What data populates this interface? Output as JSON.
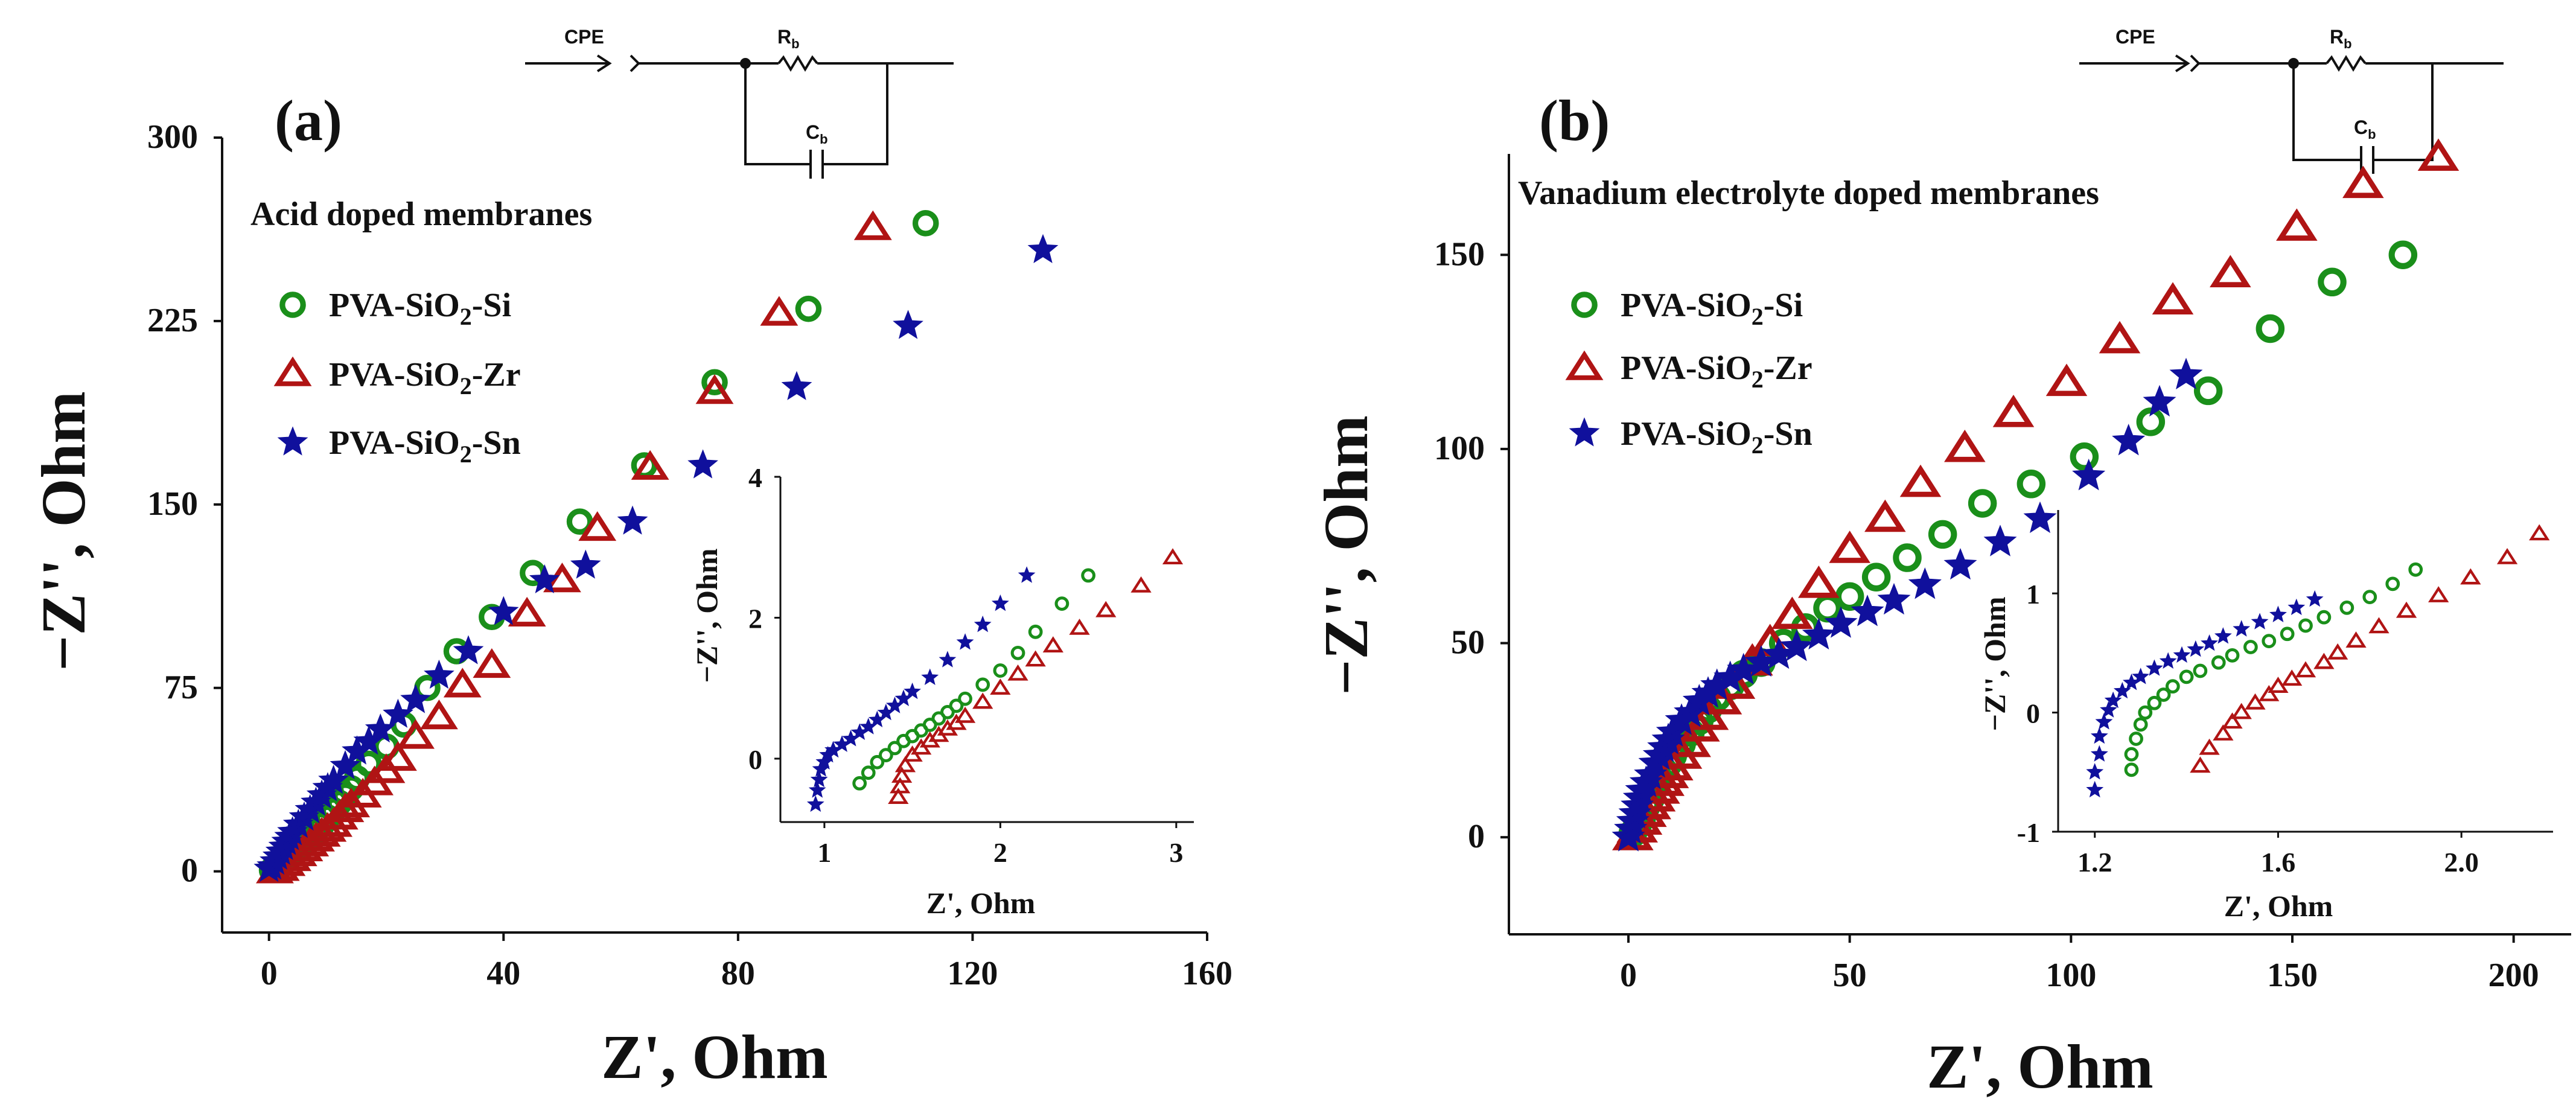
{
  "colors": {
    "si": "#1a8f1a",
    "zr": "#b01414",
    "sn": "#10109c",
    "axis": "#111111"
  },
  "chart_data": [
    {
      "type": "scatter",
      "panel_label": "(a)",
      "title": "Acid doped membranes",
      "xlabel": "Z', Ohm",
      "ylabel": "−Z'', Ohm",
      "xlim": [
        -8,
        160
      ],
      "ylim": [
        -25,
        300
      ],
      "xticks": [
        "0",
        "40",
        "80",
        "120",
        "160"
      ],
      "yticks": [
        "0",
        "75",
        "150",
        "225",
        "300"
      ],
      "legend_position": "top-left",
      "circuit": {
        "cpe_label": "CPE",
        "r_main": "R",
        "r_sub": "b",
        "c_main": "C",
        "c_sub": "b"
      },
      "series": [
        {
          "name": "PVA-SiO2-Si",
          "legend_main": "PVA-SiO",
          "legend_sub": "2",
          "legend_tail": "-Si",
          "marker": "circle",
          "color_key": "si",
          "x": [
            0.5,
            1,
            2,
            3,
            4,
            5,
            6,
            7,
            8,
            9,
            10,
            11,
            12,
            13,
            14,
            15,
            17,
            20,
            23,
            27,
            32,
            38,
            45,
            53,
            64,
            76,
            92,
            112
          ],
          "y": [
            0.5,
            1.5,
            3,
            5,
            7,
            9,
            11.5,
            14,
            16.5,
            19,
            22,
            25,
            28,
            31,
            34,
            38,
            44,
            51,
            60,
            75,
            90,
            104,
            122,
            143,
            166,
            200,
            230,
            265
          ]
        },
        {
          "name": "PVA-SiO2-Zr",
          "legend_main": "PVA-SiO",
          "legend_sub": "2",
          "legend_tail": "-Zr",
          "marker": "triangle",
          "color_key": "zr",
          "x": [
            1,
            2,
            3,
            4,
            5,
            6,
            7,
            8,
            9,
            10,
            11,
            12,
            13,
            14,
            16,
            18,
            20,
            22,
            25,
            29,
            33,
            38,
            44,
            50,
            56,
            65,
            76,
            87,
            103
          ],
          "y": [
            0,
            1,
            3,
            5,
            7,
            9,
            11,
            13,
            15,
            17,
            19,
            22,
            25,
            27,
            31,
            36,
            41,
            46,
            55,
            63,
            76,
            84,
            105,
            119,
            140,
            165,
            196,
            228,
            263
          ]
        },
        {
          "name": "PVA-SiO2-Sn",
          "legend_main": "PVA-SiO",
          "legend_sub": "2",
          "legend_tail": "-Sn",
          "marker": "star",
          "color_key": "sn",
          "x": [
            0,
            0.5,
            1,
            1.5,
            2,
            2.5,
            3,
            3.5,
            4,
            5,
            6,
            7,
            8,
            9,
            10,
            11,
            13,
            15,
            17,
            19,
            22,
            25,
            29,
            34,
            40,
            47,
            54,
            62,
            74,
            90,
            109,
            132
          ],
          "y": [
            1,
            2,
            4,
            6,
            8,
            10,
            12,
            14,
            16,
            19,
            22,
            25,
            28,
            31,
            34,
            37,
            43,
            49,
            53,
            58,
            64,
            70,
            80,
            90,
            106,
            119,
            125,
            143,
            166,
            198,
            223,
            254
          ]
        }
      ],
      "inset": {
        "xlabel": "Z', Ohm",
        "ylabel": "−Z'', Ohm",
        "xlim": [
          0.75,
          3.1
        ],
        "ylim": [
          -0.9,
          4
        ],
        "xticks": [
          "1",
          "2",
          "3"
        ],
        "yticks": [
          "0",
          "2",
          "4"
        ],
        "series": [
          {
            "name": "PVA-SiO2-Si",
            "marker": "circle",
            "color_key": "si",
            "x": [
              1.2,
              1.25,
              1.3,
              1.35,
              1.4,
              1.45,
              1.5,
              1.55,
              1.6,
              1.65,
              1.7,
              1.75,
              1.8,
              1.9,
              2.0,
              2.1,
              2.2,
              2.35,
              2.5
            ],
            "y": [
              -0.35,
              -0.2,
              -0.05,
              0.05,
              0.15,
              0.25,
              0.32,
              0.4,
              0.48,
              0.57,
              0.66,
              0.75,
              0.85,
              1.05,
              1.25,
              1.5,
              1.8,
              2.2,
              2.6
            ]
          },
          {
            "name": "PVA-SiO2-Zr",
            "marker": "triangle",
            "color_key": "zr",
            "x": [
              1.42,
              1.43,
              1.44,
              1.46,
              1.5,
              1.55,
              1.6,
              1.65,
              1.7,
              1.75,
              1.8,
              1.9,
              2.0,
              2.1,
              2.2,
              2.3,
              2.45,
              2.6,
              2.8,
              2.98
            ],
            "y": [
              -0.55,
              -0.4,
              -0.25,
              -0.1,
              0.05,
              0.15,
              0.25,
              0.33,
              0.42,
              0.5,
              0.6,
              0.8,
              1.0,
              1.2,
              1.4,
              1.6,
              1.85,
              2.1,
              2.45,
              2.85
            ]
          },
          {
            "name": "PVA-SiO2-Sn",
            "marker": "star",
            "color_key": "sn",
            "x": [
              0.95,
              0.96,
              0.97,
              0.98,
              1.0,
              1.02,
              1.05,
              1.1,
              1.15,
              1.2,
              1.25,
              1.3,
              1.35,
              1.4,
              1.45,
              1.5,
              1.6,
              1.7,
              1.8,
              1.9,
              2.0,
              2.15
            ],
            "y": [
              -0.65,
              -0.45,
              -0.3,
              -0.15,
              -0.05,
              0.05,
              0.12,
              0.2,
              0.28,
              0.37,
              0.45,
              0.55,
              0.65,
              0.75,
              0.85,
              0.95,
              1.15,
              1.4,
              1.65,
              1.9,
              2.2,
              2.6
            ]
          }
        ]
      }
    },
    {
      "type": "scatter",
      "panel_label": "(b)",
      "title": "Vanadium electrolyte doped membranes",
      "xlabel": "Z', Ohm",
      "ylabel": "−Z'', Ohm",
      "xlim": [
        -27,
        213
      ],
      "ylim": [
        -25,
        176
      ],
      "xticks": [
        "0",
        "50",
        "100",
        "150",
        "200"
      ],
      "yticks": [
        "0",
        "50",
        "100",
        "150"
      ],
      "legend_position": "top-left",
      "circuit": {
        "cpe_label": "CPE",
        "r_main": "R",
        "r_sub": "b",
        "c_main": "C",
        "c_sub": "b"
      },
      "series": [
        {
          "name": "PVA-SiO2-Si",
          "legend_main": "PVA-SiO",
          "legend_sub": "2",
          "legend_tail": "-Si",
          "marker": "circle",
          "color_key": "si",
          "x": [
            1,
            2,
            3,
            4,
            5,
            6,
            7,
            8,
            9,
            10,
            12,
            14,
            16,
            18,
            20,
            23,
            26,
            30,
            35,
            40,
            45,
            50,
            56,
            63,
            71,
            80,
            91,
            103,
            118,
            131,
            145,
            159,
            175
          ],
          "y": [
            1,
            3,
            5,
            8,
            10,
            13,
            15,
            17,
            19,
            21,
            24,
            27,
            30,
            33,
            36,
            39,
            42,
            45,
            50,
            54,
            59,
            62,
            67,
            72,
            78,
            86,
            91,
            98,
            107,
            115,
            131,
            143,
            150
          ]
        },
        {
          "name": "PVA-SiO2-Zr",
          "legend_main": "PVA-SiO",
          "legend_sub": "2",
          "legend_tail": "-Zr",
          "marker": "triangle",
          "color_key": "zr",
          "x": [
            1,
            2,
            3,
            4,
            5,
            6,
            7,
            8,
            9,
            10,
            12,
            14,
            16,
            18,
            21,
            24,
            28,
            32,
            37,
            43,
            50,
            58,
            66,
            76,
            87,
            99,
            111,
            123,
            136,
            151,
            166,
            183
          ],
          "y": [
            0,
            2,
            4,
            6,
            8,
            10,
            12,
            14,
            16,
            18,
            21,
            24,
            28,
            31,
            35,
            39,
            45,
            50,
            57,
            65,
            74,
            82,
            91,
            100,
            109,
            117,
            128,
            138,
            145,
            157,
            168,
            175
          ]
        },
        {
          "name": "PVA-SiO2-Sn",
          "legend_main": "PVA-SiO",
          "legend_sub": "2",
          "legend_tail": "-Sn",
          "marker": "star",
          "color_key": "sn",
          "x": [
            0,
            0.5,
            1,
            1.5,
            2,
            2.5,
            3,
            4,
            5,
            6,
            7,
            8,
            9,
            10,
            12,
            14,
            16,
            18,
            20,
            23,
            26,
            30,
            34,
            38,
            43,
            48,
            54,
            60,
            67,
            75,
            84,
            93,
            104,
            113,
            120,
            126
          ],
          "y": [
            0,
            2,
            4,
            6,
            8,
            10,
            12,
            14,
            16,
            19,
            21,
            23,
            25,
            27,
            30,
            32,
            35,
            37,
            39,
            41,
            43,
            45,
            47,
            49,
            52,
            55,
            58,
            61,
            65,
            70,
            76,
            82,
            93,
            102,
            112,
            119
          ]
        }
      ],
      "inset": {
        "xlabel": "Z', Ohm",
        "ylabel": "−Z'', Ohm",
        "xlim": [
          1.12,
          2.2
        ],
        "ylim": [
          -1,
          1.7
        ],
        "xticks": [
          "1.2",
          "1.6",
          "2.0"
        ],
        "yticks": [
          "-1",
          "0",
          "1"
        ],
        "series": [
          {
            "name": "PVA-SiO2-Si",
            "marker": "circle",
            "color_key": "si",
            "x": [
              1.28,
              1.28,
              1.29,
              1.3,
              1.31,
              1.33,
              1.35,
              1.37,
              1.4,
              1.43,
              1.47,
              1.5,
              1.54,
              1.58,
              1.62,
              1.66,
              1.7,
              1.75,
              1.8,
              1.85,
              1.9
            ],
            "y": [
              -0.48,
              -0.35,
              -0.22,
              -0.1,
              0.0,
              0.08,
              0.15,
              0.22,
              0.3,
              0.35,
              0.42,
              0.48,
              0.55,
              0.6,
              0.66,
              0.73,
              0.8,
              0.88,
              0.97,
              1.08,
              1.2
            ]
          },
          {
            "name": "PVA-SiO2-Zr",
            "marker": "triangle",
            "color_key": "zr",
            "x": [
              1.43,
              1.45,
              1.48,
              1.5,
              1.52,
              1.55,
              1.58,
              1.6,
              1.63,
              1.66,
              1.7,
              1.73,
              1.77,
              1.82,
              1.88,
              1.95,
              2.02,
              2.1,
              2.17
            ],
            "y": [
              -0.45,
              -0.3,
              -0.18,
              -0.08,
              0.0,
              0.08,
              0.15,
              0.22,
              0.28,
              0.35,
              0.42,
              0.5,
              0.6,
              0.72,
              0.85,
              0.98,
              1.13,
              1.3,
              1.5
            ]
          },
          {
            "name": "PVA-SiO2-Sn",
            "marker": "star",
            "color_key": "sn",
            "x": [
              1.2,
              1.2,
              1.21,
              1.21,
              1.22,
              1.23,
              1.24,
              1.26,
              1.28,
              1.3,
              1.33,
              1.36,
              1.39,
              1.42,
              1.45,
              1.48,
              1.52,
              1.56,
              1.6,
              1.64,
              1.68
            ],
            "y": [
              -0.65,
              -0.5,
              -0.35,
              -0.2,
              -0.08,
              0.02,
              0.1,
              0.18,
              0.25,
              0.3,
              0.37,
              0.43,
              0.48,
              0.53,
              0.58,
              0.64,
              0.7,
              0.76,
              0.82,
              0.88,
              0.95
            ]
          }
        ]
      }
    }
  ]
}
